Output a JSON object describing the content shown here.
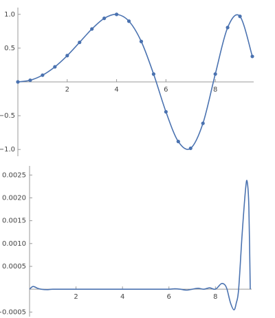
{
  "chart_data": [
    {
      "type": "line",
      "markers": true,
      "x": [
        0,
        0.5,
        1,
        1.5,
        2,
        2.5,
        3,
        3.5,
        4,
        4.5,
        5,
        5.5,
        6,
        6.5,
        7,
        7.5,
        8,
        8.5,
        9,
        9.5
      ],
      "series": [
        {
          "color": "#4a72b0",
          "values": [
            0,
            0.025,
            0.0998,
            0.2231,
            0.3894,
            0.585,
            0.7833,
            0.9407,
            0.9996,
            0.8987,
            0.5985,
            0.1161,
            -0.4425,
            -0.8818,
            -0.9825,
            -0.6129,
            0.1165,
            0.8044,
            0.9699,
            0.3776
          ]
        }
      ],
      "xlim": [
        0,
        9.5
      ],
      "ylim": [
        -1.1,
        1.1
      ],
      "xticks": [
        2,
        4,
        6,
        8
      ],
      "yticks": [
        {
          "value": -1,
          "label": "−1.0"
        },
        {
          "value": -0.5,
          "label": "−0.5"
        },
        0.5,
        {
          "value": 1,
          "label": "1.0"
        }
      ]
    },
    {
      "type": "line",
      "markers": false,
      "x": [
        0,
        0.15,
        0.35,
        0.5,
        0.75,
        1,
        1.5,
        2,
        2.5,
        3,
        3.5,
        4,
        4.5,
        5,
        5.5,
        6,
        6.25,
        6.5,
        6.75,
        7,
        7.25,
        7.5,
        7.75,
        8,
        8.25,
        8.4,
        8.5,
        8.65,
        8.8,
        8.9,
        9,
        9.15,
        9.3,
        9.37,
        9.44,
        9.5
      ],
      "series": [
        {
          "color": "#4a72b0",
          "values": [
            0,
            6e-05,
            2e-05,
            0,
            -1e-05,
            0,
            0,
            0,
            0,
            0,
            0,
            0,
            0,
            0,
            0,
            0,
            1e-05,
            0,
            -2e-05,
            0,
            2e-05,
            0,
            3e-05,
            0,
            0.00012,
            0.0001,
            0,
            -0.0003,
            -0.00045,
            -0.0003,
            0,
            0.0012,
            0.0022,
            0.00235,
            0.0018,
            0
          ]
        }
      ],
      "xlim": [
        0,
        9.5
      ],
      "ylim": [
        -0.0006,
        0.0027
      ],
      "xticks": [
        2,
        4,
        6,
        8
      ],
      "yticks": [
        {
          "value": -0.0005,
          "label": "−0.0005"
        },
        0.0005,
        {
          "value": 0.001,
          "label": "0.0010"
        },
        0.0015,
        {
          "value": 0.002,
          "label": "0.0020"
        },
        0.0025
      ]
    }
  ]
}
